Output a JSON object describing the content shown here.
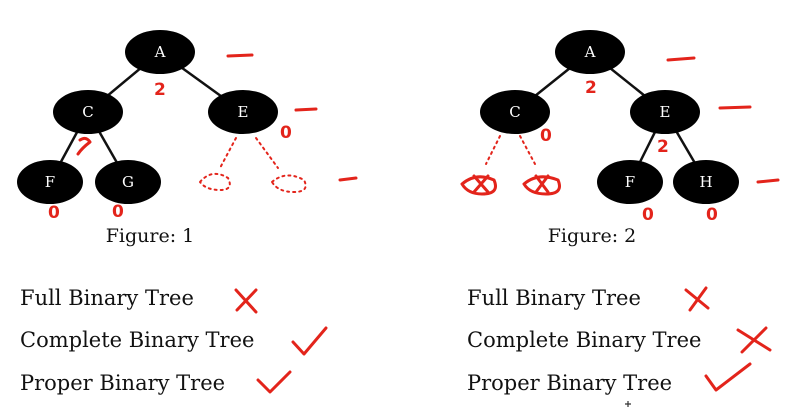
{
  "figures": [
    {
      "caption": "Figure: 1",
      "nodes": [
        "A",
        "C",
        "E",
        "F",
        "G"
      ],
      "heights": [
        "2",
        "0",
        "0",
        "0"
      ]
    },
    {
      "caption": "Figure: 2",
      "nodes": [
        "A",
        "C",
        "E",
        "F",
        "H"
      ],
      "heights": [
        "2",
        "0",
        "2",
        "0",
        "0"
      ]
    }
  ],
  "properties": [
    {
      "left_label": "Full Binary Tree",
      "right_label": "Full Binary Tree"
    },
    {
      "left_label": "Complete Binary Tree",
      "right_label": "Complete Binary Tree"
    },
    {
      "left_label": "Proper Binary Tree",
      "right_label": "Proper Binary Tree"
    }
  ],
  "colors": {
    "node": "#000000",
    "annotation": "#e3241b",
    "text": "#111111"
  },
  "marks": {
    "left": [
      "cross",
      "check",
      "check"
    ],
    "right": [
      "cross",
      "cross",
      "check"
    ]
  }
}
